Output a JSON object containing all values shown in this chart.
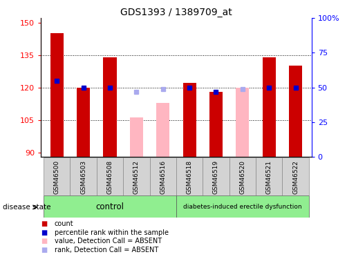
{
  "title": "GDS1393 / 1389709_at",
  "samples": [
    "GSM46500",
    "GSM46503",
    "GSM46508",
    "GSM46512",
    "GSM46516",
    "GSM46518",
    "GSM46519",
    "GSM46520",
    "GSM46521",
    "GSM46522"
  ],
  "count_values": [
    145,
    120,
    134,
    null,
    null,
    122,
    118,
    null,
    134,
    130
  ],
  "count_absent_values": [
    null,
    null,
    null,
    106,
    113,
    null,
    null,
    120,
    null,
    null
  ],
  "rank_pct_values": [
    55,
    50,
    50,
    null,
    null,
    50,
    47,
    null,
    50,
    50
  ],
  "rank_pct_absent": [
    null,
    null,
    null,
    47,
    49,
    null,
    null,
    49,
    null,
    null
  ],
  "ylim_left": [
    88,
    152
  ],
  "ylim_right": [
    0,
    100
  ],
  "yticks_left": [
    90,
    105,
    120,
    135,
    150
  ],
  "yticks_right": [
    0,
    25,
    50,
    75,
    100
  ],
  "ytick_labels_right": [
    "0",
    "25",
    "50",
    "75",
    "100%"
  ],
  "control_label": "control",
  "disease_label": "diabetes-induced erectile dysfunction",
  "disease_state_label": "disease state",
  "bar_color_red": "#CC0000",
  "bar_color_pink": "#FFB6C1",
  "dot_color_blue": "#0000CC",
  "dot_color_lightblue": "#AAAAEE",
  "legend_items": [
    "count",
    "percentile rank within the sample",
    "value, Detection Call = ABSENT",
    "rank, Detection Call = ABSENT"
  ],
  "legend_colors": [
    "#CC0000",
    "#0000CC",
    "#FFB6C1",
    "#AAAAEE"
  ]
}
